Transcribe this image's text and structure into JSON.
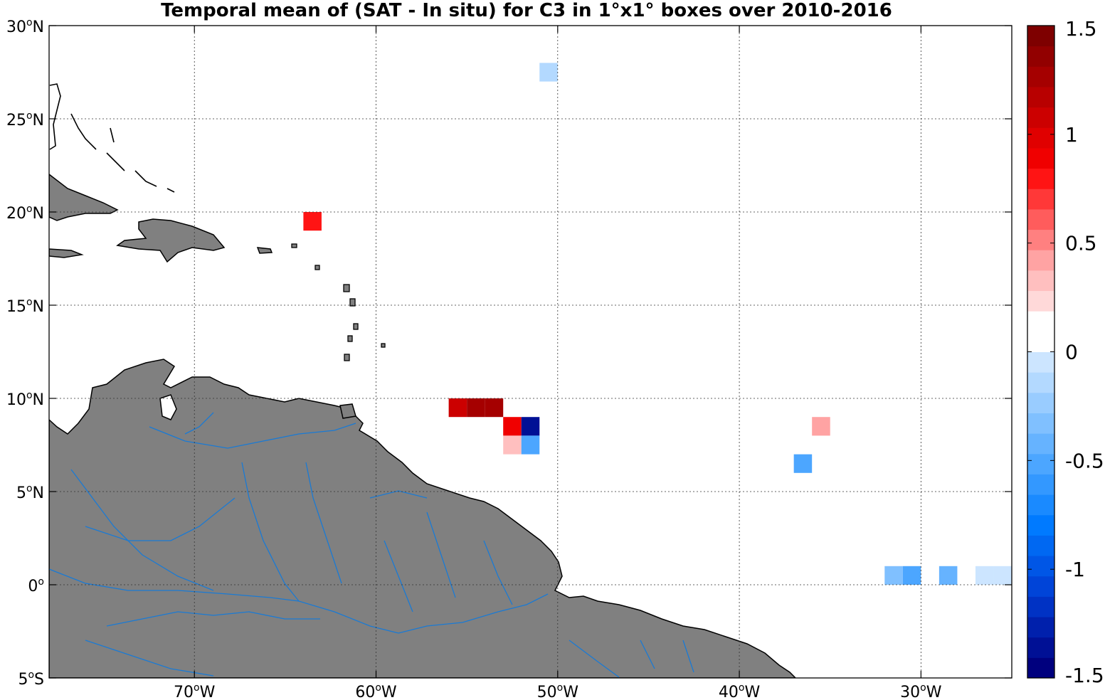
{
  "title": "Temporal mean of (SAT - In situ) for C3 in 1°x1° boxes over 2010-2016",
  "map": {
    "lon_range": [
      -78,
      -25
    ],
    "lat_range": [
      -5,
      30
    ],
    "lon_ticks": [
      {
        "value": -70,
        "label": "70",
        "suffix": "W"
      },
      {
        "value": -60,
        "label": "60",
        "suffix": "W"
      },
      {
        "value": -50,
        "label": "50",
        "suffix": "W"
      },
      {
        "value": -40,
        "label": "40",
        "suffix": "W"
      },
      {
        "value": -30,
        "label": "30",
        "suffix": "W"
      }
    ],
    "lat_ticks": [
      {
        "value": 30,
        "label": "30",
        "suffix": "N"
      },
      {
        "value": 25,
        "label": "25",
        "suffix": "N"
      },
      {
        "value": 20,
        "label": "20",
        "suffix": "N"
      },
      {
        "value": 15,
        "label": "15",
        "suffix": "N"
      },
      {
        "value": 10,
        "label": "10",
        "suffix": "N"
      },
      {
        "value": 5,
        "label": "5",
        "suffix": "N"
      },
      {
        "value": 0,
        "label": "0",
        "suffix": ""
      },
      {
        "value": -5,
        "label": "5",
        "suffix": "S"
      }
    ],
    "grid": true,
    "land_color": "#808080",
    "coast_color": "#000000",
    "river_color": "#1a7ad4"
  },
  "colorbar": {
    "min": -1.5,
    "max": 1.5,
    "ticks": [
      {
        "value": 1.5,
        "label": "1.5"
      },
      {
        "value": 1,
        "label": "1"
      },
      {
        "value": 0.5,
        "label": "0.5"
      },
      {
        "value": 0,
        "label": "0"
      },
      {
        "value": -0.5,
        "label": "-0.5"
      },
      {
        "value": -1,
        "label": "-1"
      },
      {
        "value": -1.5,
        "label": "-1.5"
      }
    ],
    "colors": [
      "#00007e",
      "#001095",
      "#0020ac",
      "#0032c4",
      "#0044d8",
      "#0056e6",
      "#0068f2",
      "#007aff",
      "#1a8aff",
      "#3398ff",
      "#4ca6ff",
      "#66b3ff",
      "#80c0ff",
      "#99ccff",
      "#b3d9ff",
      "#cce5ff",
      "#ffffff",
      "#ffffff",
      "#ffd9d9",
      "#ffbfbf",
      "#ffa3a3",
      "#ff8080",
      "#ff5c5c",
      "#ff3838",
      "#ff1414",
      "#f00000",
      "#e00000",
      "#cc0000",
      "#b80000",
      "#a50000",
      "#920000",
      "#7e0000"
    ]
  },
  "chart_data": {
    "type": "heatmap",
    "title": "Temporal mean of (SAT - In situ) for C3 in 1°x1° boxes over 2010-2016",
    "xlabel": "",
    "ylabel": "",
    "xlim": [
      -78,
      -25
    ],
    "ylim": [
      -5,
      30
    ],
    "cell_size_deg": 1,
    "cells": [
      {
        "lon": -51,
        "lat": 27,
        "value": -0.15
      },
      {
        "lon": -64,
        "lat": 19,
        "value": 0.8
      },
      {
        "lon": -56,
        "lat": 9,
        "value": 1.1
      },
      {
        "lon": -55,
        "lat": 9,
        "value": 1.3
      },
      {
        "lon": -54,
        "lat": 9,
        "value": 1.25
      },
      {
        "lon": -53,
        "lat": 8,
        "value": 0.85
      },
      {
        "lon": -52,
        "lat": 8,
        "value": -1.4
      },
      {
        "lon": -53,
        "lat": 7,
        "value": 0.3
      },
      {
        "lon": -52,
        "lat": 7,
        "value": -0.5
      },
      {
        "lon": -36,
        "lat": 8,
        "value": 0.45
      },
      {
        "lon": -37,
        "lat": 6,
        "value": -0.5
      },
      {
        "lon": -32,
        "lat": 0,
        "value": -0.35
      },
      {
        "lon": -31,
        "lat": 0,
        "value": -0.5
      },
      {
        "lon": -29,
        "lat": 0,
        "value": -0.4
      },
      {
        "lon": -27,
        "lat": 0,
        "value": -0.05
      },
      {
        "lon": -26,
        "lat": 0,
        "value": -0.05
      }
    ],
    "colorbar_range": [
      -1.5,
      1.5
    ]
  }
}
